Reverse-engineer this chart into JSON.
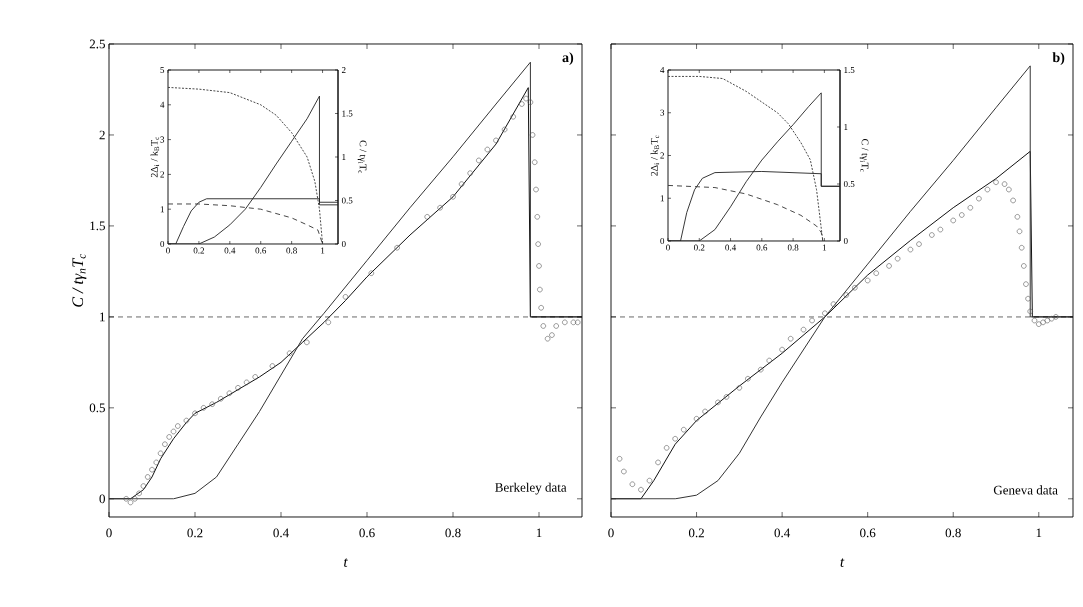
{
  "chart_data": [
    {
      "type": "line",
      "xlabel": "t",
      "ylabel": "C / tγ$_{n}$T$_{c}$",
      "xlim": [
        0,
        1.1
      ],
      "ylim": [
        -0.1,
        2.5
      ],
      "xticks": [
        0,
        0.2,
        0.4,
        0.6,
        0.8,
        1
      ],
      "yticks": [
        0,
        0.5,
        1,
        1.5,
        2,
        2.5
      ],
      "annotations": [
        "a)",
        "Berkeley data"
      ],
      "ref_lines": [
        {
          "axis": "y",
          "value": 1,
          "line_style": "dashed"
        }
      ],
      "series": [
        {
          "type": "scatter",
          "marker": "circle",
          "color": "#555555",
          "x": [
            0.04,
            0.05,
            0.06,
            0.07,
            0.08,
            0.09,
            0.1,
            0.11,
            0.12,
            0.13,
            0.14,
            0.15,
            0.16,
            0.18,
            0.2,
            0.22,
            0.24,
            0.26,
            0.28,
            0.3,
            0.32,
            0.34,
            0.38,
            0.42,
            0.46,
            0.51,
            0.55,
            0.61,
            0.67,
            0.74,
            0.77,
            0.8,
            0.82,
            0.84,
            0.86,
            0.88,
            0.9,
            0.92,
            0.94,
            0.96,
            0.97,
            0.98,
            0.985,
            0.99,
            0.993,
            0.996,
            0.998,
            1.0,
            1.002,
            1.005,
            1.01,
            1.02,
            1.03,
            1.04,
            1.06,
            1.08,
            1.09
          ],
          "values": [
            0,
            -0.02,
            0,
            0.03,
            0.07,
            0.12,
            0.16,
            0.2,
            0.25,
            0.3,
            0.34,
            0.37,
            0.4,
            0.43,
            0.47,
            0.5,
            0.52,
            0.55,
            0.58,
            0.61,
            0.64,
            0.67,
            0.73,
            0.8,
            0.86,
            0.97,
            1.11,
            1.24,
            1.38,
            1.55,
            1.6,
            1.66,
            1.73,
            1.79,
            1.86,
            1.92,
            1.97,
            2.03,
            2.1,
            2.17,
            2.2,
            2.18,
            2.0,
            1.85,
            1.7,
            1.55,
            1.4,
            1.28,
            1.15,
            1.05,
            0.95,
            0.88,
            0.9,
            0.95,
            0.97,
            0.97,
            0.97
          ]
        },
        {
          "type": "line",
          "line_style": "solid",
          "color": "#111111",
          "x": [
            0,
            0.05,
            0.08,
            0.1,
            0.12,
            0.15,
            0.18,
            0.2,
            0.25,
            0.3,
            0.35,
            0.4,
            0.45,
            0.5,
            0.55,
            0.6,
            0.7,
            0.8,
            0.9,
            0.975,
            0.98,
            1.1
          ],
          "values": [
            0,
            0,
            0.05,
            0.12,
            0.22,
            0.33,
            0.42,
            0.47,
            0.53,
            0.6,
            0.67,
            0.75,
            0.86,
            0.97,
            1.09,
            1.22,
            1.45,
            1.66,
            1.95,
            2.26,
            1.0,
            1.0
          ]
        },
        {
          "type": "line",
          "line_style": "solid",
          "color": "#333333",
          "x": [
            0,
            0.15,
            0.2,
            0.25,
            0.3,
            0.35,
            0.4,
            0.45,
            0.5,
            0.6,
            0.7,
            0.8,
            0.9,
            0.98,
            0.98,
            1.1
          ],
          "values": [
            0,
            0,
            0.03,
            0.12,
            0.3,
            0.48,
            0.68,
            0.88,
            1.02,
            1.31,
            1.6,
            1.88,
            2.17,
            2.4,
            1.0,
            1.0
          ]
        }
      ]
    },
    {
      "type": "line",
      "ylabel": "2Δ$_{i}$ / k$_{B}$T$_{c}$",
      "y2label": "C / tγ$_{i}$T$_{c}$",
      "xlim": [
        0,
        1.1
      ],
      "ylim": [
        0,
        5
      ],
      "y2lim": [
        0,
        2
      ],
      "xticks": [
        0,
        0.2,
        0.4,
        0.6,
        0.8,
        1
      ],
      "yticks": [
        0,
        1,
        2,
        3,
        4,
        5
      ],
      "y2ticks": [
        0,
        0.5,
        1,
        1.5,
        2
      ],
      "series": [
        {
          "line_style": "dotted",
          "color": "#333333",
          "x": [
            0,
            0.2,
            0.4,
            0.6,
            0.7,
            0.8,
            0.9,
            0.95,
            0.98,
            1.0
          ],
          "values": [
            4.5,
            4.45,
            4.35,
            4.0,
            3.7,
            3.2,
            2.5,
            1.8,
            1.0,
            0
          ]
        },
        {
          "line_style": "dashed",
          "color": "#333333",
          "x": [
            0,
            0.2,
            0.4,
            0.6,
            0.8,
            0.9,
            0.97,
            1.0
          ],
          "values": [
            1.15,
            1.15,
            1.1,
            1.0,
            0.75,
            0.55,
            0.4,
            0
          ]
        },
        {
          "axis": "y2",
          "line_style": "solid",
          "color": "#222222",
          "x": [
            0,
            0.2,
            0.3,
            0.4,
            0.5,
            0.6,
            0.7,
            0.8,
            0.9,
            0.98,
            0.98,
            1.1
          ],
          "values": [
            0,
            0,
            0.08,
            0.22,
            0.4,
            0.65,
            0.92,
            1.18,
            1.44,
            1.7,
            0.48,
            0.48
          ]
        },
        {
          "axis": "y2",
          "line_style": "solid",
          "color": "#222222",
          "x": [
            0,
            0.05,
            0.1,
            0.15,
            0.2,
            0.25,
            0.98,
            0.98,
            1.1
          ],
          "values": [
            0,
            0,
            0.2,
            0.38,
            0.48,
            0.52,
            0.52,
            0.45,
            0.45
          ]
        }
      ]
    },
    {
      "type": "line",
      "xlabel": "t",
      "xlim": [
        0,
        1.08
      ],
      "ylim": [
        -0.1,
        2.5
      ],
      "xticks": [
        0,
        0.2,
        0.4,
        0.6,
        0.8,
        1
      ],
      "yticks": [
        0,
        0.5,
        1,
        1.5,
        2,
        2.5
      ],
      "tick_labels": "x",
      "annotations": [
        "b)",
        "Geneva data"
      ],
      "ref_lines": [
        {
          "axis": "y",
          "value": 1,
          "line_style": "dashed"
        }
      ],
      "series": [
        {
          "type": "scatter",
          "marker": "circle",
          "color": "#555555",
          "x": [
            0.02,
            0.03,
            0.05,
            0.07,
            0.09,
            0.11,
            0.13,
            0.15,
            0.17,
            0.2,
            0.22,
            0.25,
            0.27,
            0.3,
            0.32,
            0.35,
            0.37,
            0.4,
            0.42,
            0.45,
            0.47,
            0.5,
            0.52,
            0.55,
            0.57,
            0.6,
            0.62,
            0.65,
            0.67,
            0.7,
            0.72,
            0.75,
            0.77,
            0.8,
            0.82,
            0.84,
            0.86,
            0.88,
            0.9,
            0.92,
            0.93,
            0.94,
            0.95,
            0.955,
            0.96,
            0.965,
            0.97,
            0.975,
            0.98,
            0.99,
            1.0,
            1.01,
            1.02,
            1.03,
            1.04
          ],
          "values": [
            0.22,
            0.15,
            0.08,
            0.05,
            0.1,
            0.2,
            0.28,
            0.33,
            0.38,
            0.44,
            0.48,
            0.53,
            0.56,
            0.61,
            0.66,
            0.71,
            0.76,
            0.82,
            0.88,
            0.93,
            0.98,
            1.02,
            1.07,
            1.12,
            1.16,
            1.2,
            1.24,
            1.28,
            1.32,
            1.37,
            1.4,
            1.45,
            1.48,
            1.53,
            1.56,
            1.6,
            1.65,
            1.7,
            1.74,
            1.73,
            1.7,
            1.64,
            1.55,
            1.47,
            1.38,
            1.28,
            1.18,
            1.1,
            1.03,
            0.98,
            0.96,
            0.97,
            0.98,
            0.99,
            1.0
          ]
        },
        {
          "type": "line",
          "line_style": "solid",
          "color": "#111111",
          "x": [
            0,
            0.07,
            0.1,
            0.15,
            0.2,
            0.3,
            0.4,
            0.5,
            0.6,
            0.7,
            0.8,
            0.9,
            0.98,
            0.985,
            1.08
          ],
          "values": [
            0,
            0,
            0.1,
            0.3,
            0.43,
            0.62,
            0.8,
            1.0,
            1.23,
            1.42,
            1.6,
            1.76,
            1.91,
            1.0,
            1.0
          ]
        },
        {
          "type": "line",
          "line_style": "solid",
          "color": "#333333",
          "x": [
            0,
            0.15,
            0.2,
            0.25,
            0.3,
            0.35,
            0.4,
            0.45,
            0.5,
            0.6,
            0.7,
            0.8,
            0.9,
            0.98,
            0.98,
            1.08
          ],
          "values": [
            0,
            0,
            0.02,
            0.1,
            0.25,
            0.45,
            0.64,
            0.82,
            1.0,
            1.29,
            1.58,
            1.86,
            2.15,
            2.38,
            1.0,
            1.0
          ]
        }
      ]
    },
    {
      "type": "line",
      "ylabel": "2Δ$_{i}$ / k$_{B}$T$_{c}$",
      "y2label": "C / tγ$_{i}$T$_{c}$",
      "xlim": [
        0,
        1.1
      ],
      "ylim": [
        0,
        4
      ],
      "y2lim": [
        0,
        1.5
      ],
      "xticks": [
        0,
        0.2,
        0.4,
        0.6,
        0.8,
        1
      ],
      "yticks": [
        0,
        1,
        2,
        3,
        4
      ],
      "y2ticks": [
        0,
        0.5,
        1,
        1.5
      ],
      "series": [
        {
          "line_style": "dotted",
          "color": "#333333",
          "x": [
            0,
            0.2,
            0.35,
            0.5,
            0.6,
            0.7,
            0.77,
            0.85,
            0.91,
            0.95,
            0.98,
            0.99
          ],
          "values": [
            3.85,
            3.85,
            3.8,
            3.5,
            3.25,
            3.0,
            2.74,
            2.3,
            1.9,
            1.2,
            0.3,
            0
          ]
        },
        {
          "line_style": "dashed",
          "color": "#333333",
          "x": [
            0,
            0.3,
            0.5,
            0.7,
            0.85,
            0.95,
            0.98,
            0.99
          ],
          "values": [
            1.3,
            1.25,
            1.1,
            0.85,
            0.6,
            0.35,
            0.2,
            0
          ]
        },
        {
          "axis": "y2",
          "line_style": "solid",
          "color": "#222222",
          "x": [
            0,
            0.2,
            0.3,
            0.4,
            0.5,
            0.6,
            0.7,
            0.8,
            0.9,
            0.98,
            0.98,
            1.1
          ],
          "values": [
            0,
            0,
            0.1,
            0.3,
            0.52,
            0.71,
            0.87,
            1.02,
            1.18,
            1.3,
            0.48,
            0.48
          ]
        },
        {
          "axis": "y2",
          "line_style": "solid",
          "color": "#222222",
          "x": [
            0,
            0.08,
            0.12,
            0.17,
            0.22,
            0.3,
            0.6,
            0.98,
            0.98,
            1.1
          ],
          "values": [
            0,
            0,
            0.25,
            0.45,
            0.55,
            0.6,
            0.61,
            0.59,
            0.48,
            0.48
          ]
        }
      ]
    }
  ]
}
